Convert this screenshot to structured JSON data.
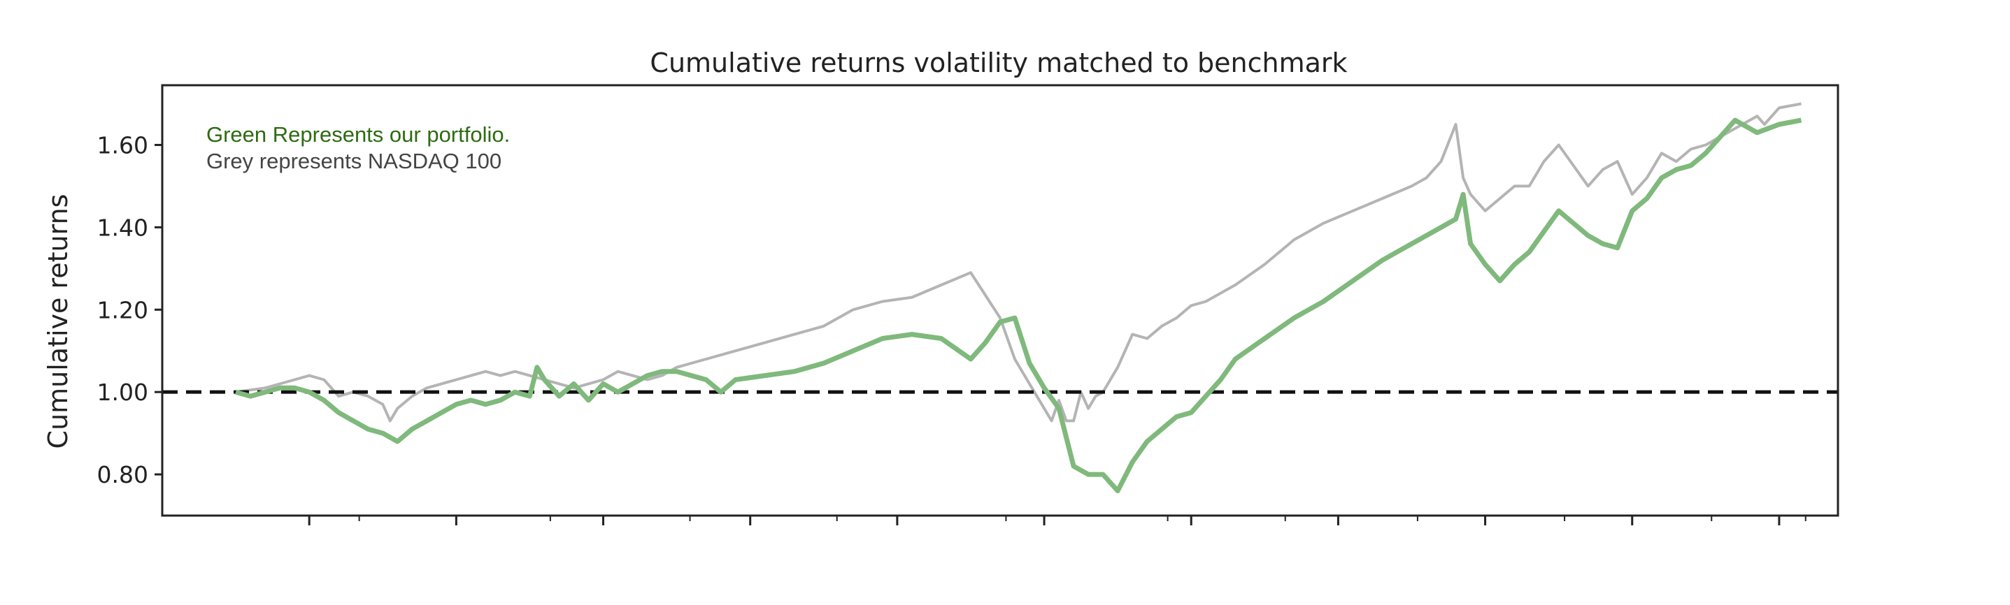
{
  "colors": {
    "portfolio": "#7fb97c",
    "benchmark": "#b4b4b4",
    "reference": "#111111",
    "note_green": "#2e6b12",
    "note_grey": "#444444"
  },
  "chart_data": {
    "type": "line",
    "title": "Cumulative returns volatility matched to benchmark",
    "xlabel": "",
    "ylabel": "Cumulative returns",
    "ylim": [
      0.7,
      1.745
    ],
    "yticks": [
      0.8,
      1.0,
      1.2,
      1.4,
      1.6
    ],
    "ytick_labels": [
      "0.80",
      "1.00",
      "1.20",
      "1.40",
      "1.60"
    ],
    "xlim": [
      -0.5,
      10.9
    ],
    "xticks_major": [
      0.5,
      1.5,
      2.5,
      3.5,
      4.5,
      5.5,
      6.5,
      7.5,
      8.5,
      9.5,
      10.5
    ],
    "xticks_minor": [
      0.84,
      2.14,
      3.09,
      4.09,
      5.24,
      6.34,
      7.14,
      8.04,
      9.04,
      10.04,
      10.68
    ],
    "grid": false,
    "reference_line": {
      "y": 1.0,
      "style": "dashed"
    },
    "annotations": [
      "Green Represents our portfolio.",
      "Grey represents NASDAQ 100"
    ],
    "series": [
      {
        "key": "benchmark",
        "x": [
          0,
          0.2,
          0.4,
          0.5,
          0.6,
          0.7,
          0.8,
          0.9,
          1.0,
          1.05,
          1.1,
          1.2,
          1.3,
          1.4,
          1.5,
          1.6,
          1.7,
          1.8,
          1.9,
          2.0,
          2.1,
          2.2,
          2.3,
          2.4,
          2.5,
          2.6,
          2.7,
          2.8,
          2.9,
          3.0,
          3.2,
          3.4,
          3.6,
          3.8,
          4.0,
          4.2,
          4.4,
          4.6,
          4.8,
          5.0,
          5.2,
          5.3,
          5.4,
          5.5,
          5.55,
          5.6,
          5.65,
          5.7,
          5.75,
          5.8,
          5.85,
          5.9,
          6.0,
          6.1,
          6.2,
          6.3,
          6.4,
          6.5,
          6.6,
          6.8,
          7.0,
          7.2,
          7.4,
          7.6,
          7.8,
          8.0,
          8.1,
          8.2,
          8.3,
          8.35,
          8.4,
          8.5,
          8.6,
          8.7,
          8.8,
          8.9,
          9.0,
          9.1,
          9.2,
          9.3,
          9.4,
          9.5,
          9.6,
          9.7,
          9.8,
          9.9,
          10.0,
          10.2,
          10.35,
          10.4,
          10.5,
          10.65
        ],
        "y": [
          1.0,
          1.01,
          1.03,
          1.04,
          1.03,
          0.99,
          1.0,
          0.99,
          0.97,
          0.93,
          0.96,
          0.99,
          1.01,
          1.02,
          1.03,
          1.04,
          1.05,
          1.04,
          1.05,
          1.04,
          1.03,
          1.02,
          1.01,
          1.02,
          1.03,
          1.05,
          1.04,
          1.03,
          1.04,
          1.06,
          1.08,
          1.1,
          1.12,
          1.14,
          1.16,
          1.2,
          1.22,
          1.23,
          1.26,
          1.29,
          1.18,
          1.08,
          1.02,
          0.96,
          0.93,
          0.98,
          0.93,
          0.93,
          1.0,
          0.96,
          0.99,
          1.0,
          1.06,
          1.14,
          1.13,
          1.16,
          1.18,
          1.21,
          1.22,
          1.26,
          1.31,
          1.37,
          1.41,
          1.44,
          1.47,
          1.5,
          1.52,
          1.56,
          1.65,
          1.52,
          1.48,
          1.44,
          1.47,
          1.5,
          1.5,
          1.56,
          1.6,
          1.55,
          1.5,
          1.54,
          1.56,
          1.48,
          1.52,
          1.58,
          1.56,
          1.59,
          1.6,
          1.64,
          1.67,
          1.65,
          1.69,
          1.7
        ]
      },
      {
        "key": "portfolio",
        "x": [
          0,
          0.1,
          0.2,
          0.3,
          0.4,
          0.5,
          0.6,
          0.7,
          0.8,
          0.9,
          1.0,
          1.1,
          1.2,
          1.3,
          1.4,
          1.5,
          1.6,
          1.7,
          1.8,
          1.9,
          2.0,
          2.05,
          2.1,
          2.2,
          2.3,
          2.4,
          2.5,
          2.6,
          2.7,
          2.8,
          2.9,
          3.0,
          3.1,
          3.2,
          3.3,
          3.4,
          3.6,
          3.8,
          4.0,
          4.2,
          4.4,
          4.6,
          4.8,
          5.0,
          5.1,
          5.2,
          5.3,
          5.4,
          5.5,
          5.6,
          5.7,
          5.8,
          5.9,
          6.0,
          6.1,
          6.2,
          6.3,
          6.4,
          6.5,
          6.6,
          6.7,
          6.8,
          7.0,
          7.2,
          7.4,
          7.6,
          7.8,
          8.0,
          8.1,
          8.2,
          8.3,
          8.35,
          8.4,
          8.5,
          8.6,
          8.7,
          8.8,
          8.9,
          9.0,
          9.1,
          9.2,
          9.3,
          9.4,
          9.5,
          9.6,
          9.7,
          9.8,
          9.9,
          10.0,
          10.1,
          10.2,
          10.35,
          10.5,
          10.65
        ],
        "y": [
          1.0,
          0.99,
          1.0,
          1.01,
          1.01,
          1.0,
          0.98,
          0.95,
          0.93,
          0.91,
          0.9,
          0.88,
          0.91,
          0.93,
          0.95,
          0.97,
          0.98,
          0.97,
          0.98,
          1.0,
          0.99,
          1.06,
          1.03,
          0.99,
          1.02,
          0.98,
          1.02,
          1.0,
          1.02,
          1.04,
          1.05,
          1.05,
          1.04,
          1.03,
          1.0,
          1.03,
          1.04,
          1.05,
          1.07,
          1.1,
          1.13,
          1.14,
          1.13,
          1.08,
          1.12,
          1.17,
          1.18,
          1.07,
          1.01,
          0.96,
          0.82,
          0.8,
          0.8,
          0.76,
          0.83,
          0.88,
          0.91,
          0.94,
          0.95,
          0.99,
          1.03,
          1.08,
          1.13,
          1.18,
          1.22,
          1.27,
          1.32,
          1.36,
          1.38,
          1.4,
          1.42,
          1.48,
          1.36,
          1.31,
          1.27,
          1.31,
          1.34,
          1.39,
          1.44,
          1.41,
          1.38,
          1.36,
          1.35,
          1.44,
          1.47,
          1.52,
          1.54,
          1.55,
          1.58,
          1.62,
          1.66,
          1.63,
          1.65,
          1.66
        ]
      }
    ]
  }
}
